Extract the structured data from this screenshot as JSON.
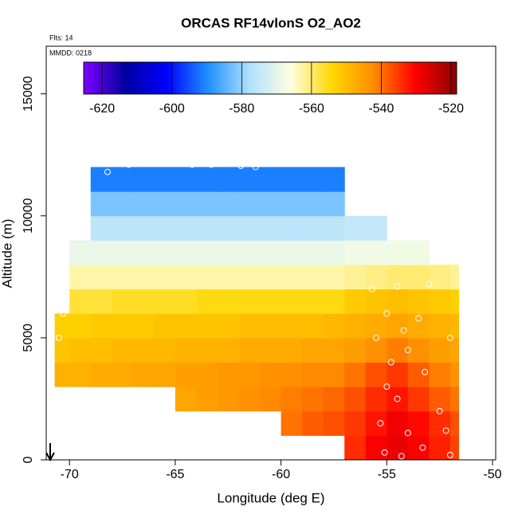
{
  "chart_data": {
    "type": "heatmap",
    "title": "ORCAS RF14vlonS O2_AO2",
    "flights_label": "Flts: 14",
    "date_label": "MMDD: 0218",
    "x_label": "Longitude (deg E)",
    "y_label": "Altitude (m)",
    "xlim": [
      -71.1,
      -49.85
    ],
    "ylim": [
      0,
      16950
    ],
    "xticks": [
      -70,
      -65,
      -60,
      -55,
      -50
    ],
    "yticks": [
      0,
      5000,
      10000,
      15000
    ],
    "x_edges": [
      -70.7,
      -70,
      -69,
      -68,
      -67,
      -66,
      -65,
      -64,
      -63,
      -62,
      -61,
      -60,
      -59,
      -58,
      -57,
      -56,
      -55,
      -54,
      -53,
      -52,
      -51.6
    ],
    "y_edges": [
      0,
      1000,
      2000,
      3000,
      4000,
      5000,
      6000,
      7000,
      8000,
      9000,
      10000,
      11000,
      12000
    ],
    "values": [
      [
        null,
        null,
        null,
        null,
        null,
        null,
        null,
        null,
        null,
        null,
        null,
        null,
        null,
        null,
        -534,
        -530,
        -528,
        -530,
        -533,
        -536
      ],
      [
        null,
        null,
        null,
        null,
        null,
        null,
        null,
        null,
        null,
        null,
        null,
        -540,
        -538,
        -537,
        -535,
        -532,
        -529,
        -531,
        -534,
        -537
      ],
      [
        null,
        null,
        null,
        null,
        null,
        null,
        -546,
        -545,
        -544,
        -543,
        -542,
        -541,
        -540,
        -539,
        -537,
        -534,
        -532,
        -535,
        -538,
        -540
      ],
      [
        -548,
        -548,
        -547,
        -547,
        -546,
        -546,
        -545,
        -545,
        -544,
        -544,
        -543,
        -543,
        -542,
        -542,
        -540,
        -537,
        -535,
        -538,
        -541,
        -543
      ],
      [
        -551,
        -550,
        -550,
        -549,
        -549,
        -549,
        -548,
        -548,
        -548,
        -547,
        -547,
        -547,
        -546,
        -546,
        -545,
        -543,
        -541,
        -543,
        -545,
        -546
      ],
      [
        -553,
        -553,
        -552,
        -552,
        -552,
        -551,
        -551,
        -551,
        -551,
        -550,
        -550,
        -550,
        -550,
        -549,
        -548,
        -547,
        -546,
        -547,
        -548,
        -549
      ],
      [
        null,
        -557,
        -557,
        -556,
        -556,
        -556,
        -556,
        -555,
        -555,
        -555,
        -555,
        -555,
        -555,
        -555,
        -552,
        -551,
        -550,
        -551,
        -552,
        -553
      ],
      [
        null,
        -563,
        -563,
        -563,
        -563,
        -563,
        -563,
        -563,
        -563,
        -563,
        -563,
        -563,
        -563,
        -563,
        -562,
        -561,
        -560,
        -560,
        -561,
        -562
      ],
      [
        null,
        -569,
        -569,
        -569,
        -569,
        -569,
        -569,
        -569,
        -569,
        -569,
        -569,
        -569,
        -569,
        -569,
        -568,
        -568,
        -568,
        -568,
        null,
        null
      ],
      [
        null,
        null,
        -576,
        -576,
        -576,
        -576,
        -576,
        -576,
        -576,
        -576,
        -576,
        -576,
        -576,
        -576,
        -575,
        -575,
        null,
        null,
        null,
        null
      ],
      [
        null,
        null,
        -582,
        -582,
        -582,
        -582,
        -582,
        -582,
        -582,
        -582,
        -582,
        -582,
        -582,
        -582,
        null,
        null,
        null,
        null,
        null,
        null
      ],
      [
        null,
        null,
        -591,
        -591,
        -591,
        -591,
        -591,
        -591,
        -591,
        -591,
        -591,
        -591,
        -591,
        -591,
        null,
        null,
        null,
        null,
        null,
        null
      ]
    ],
    "points": {
      "x": [
        -68.2,
        -67.2,
        -66,
        -64.2,
        -63.3,
        -61.9,
        -61.2,
        -56.5,
        -55.7,
        -54.5,
        -53,
        -55,
        -54.2,
        -53.5,
        -55.5,
        -54,
        -52,
        -54.8,
        -53.2,
        -55,
        -54.5,
        -52.5,
        -55.3,
        -54,
        -52.2,
        -53.3,
        -55.1,
        -52,
        -54.3,
        -70.5,
        -70.3
      ],
      "y": [
        11800,
        12100,
        12150,
        12100,
        12100,
        12050,
        12000,
        11900,
        7000,
        7100,
        7200,
        6000,
        5300,
        5800,
        5000,
        4500,
        5000,
        4000,
        3600,
        3000,
        2500,
        2000,
        1500,
        1100,
        1200,
        500,
        300,
        200,
        150,
        5000,
        6000
      ]
    },
    "colorbar": {
      "lim": [
        -625.3,
        -518.4
      ],
      "ticks": [
        -620,
        -600,
        -580,
        -560,
        -540,
        -520
      ],
      "colors": [
        "#7f00ff",
        "#0000a0",
        "#0000ff",
        "#1e90ff",
        "#b0e0ff",
        "#ffffe0",
        "#ffd700",
        "#ff8c00",
        "#ff0000",
        "#8b0000"
      ]
    }
  }
}
